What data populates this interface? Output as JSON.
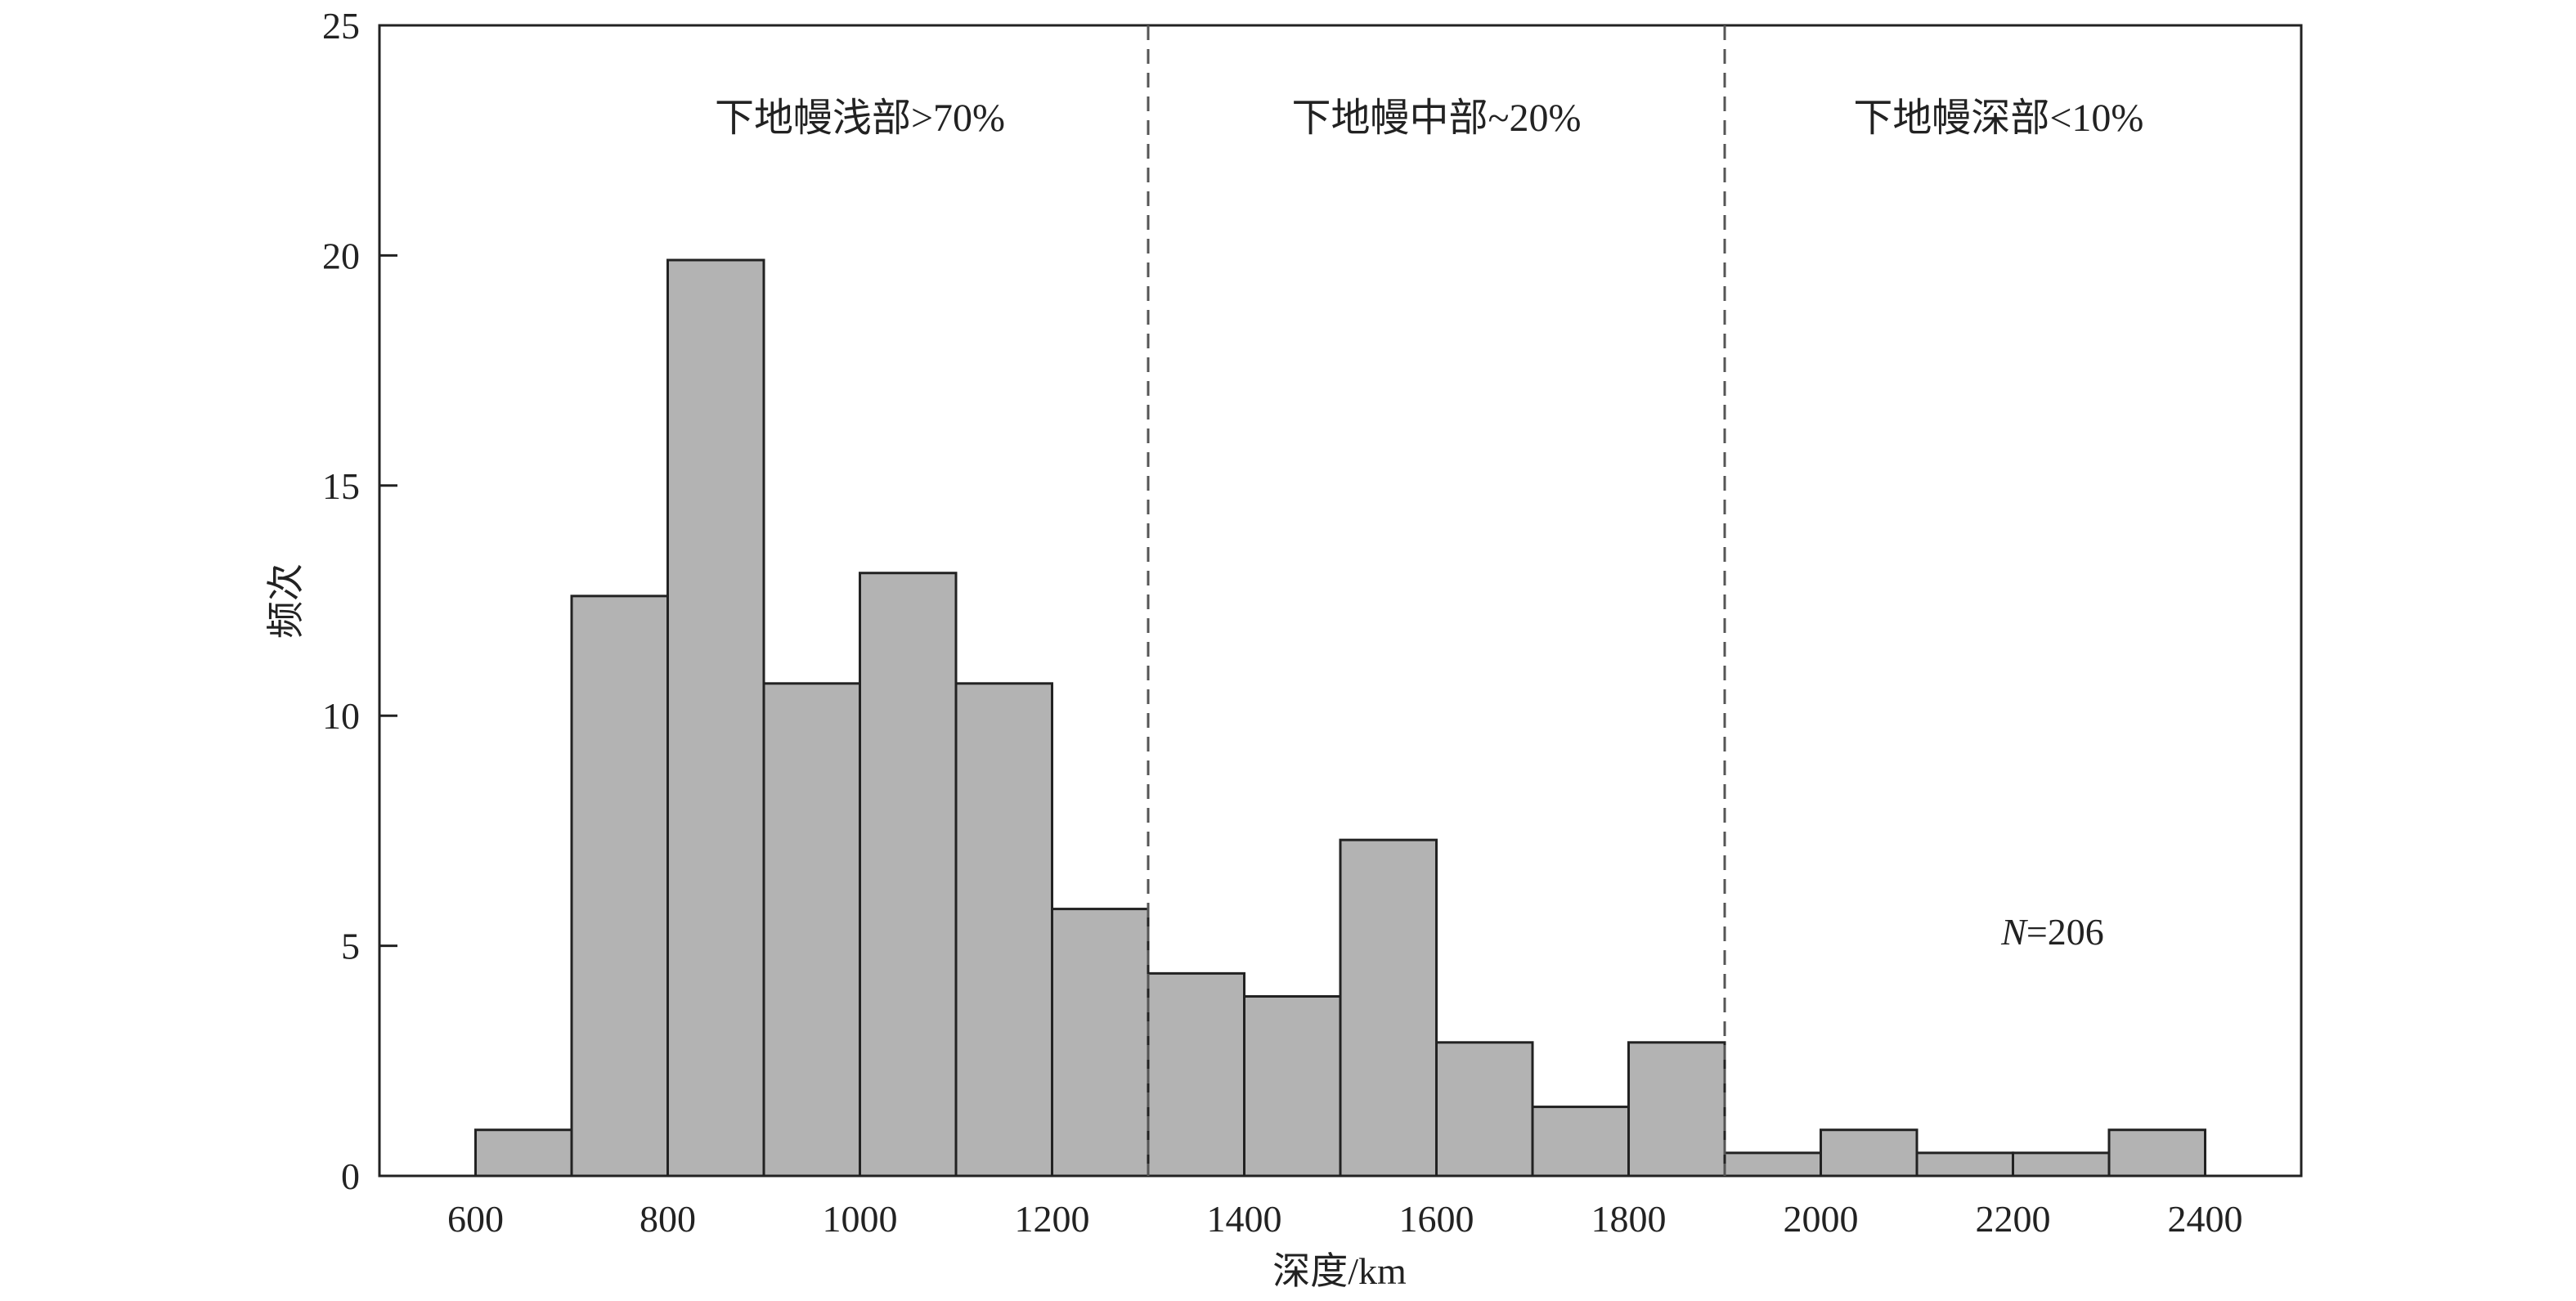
{
  "chart_data": {
    "type": "bar",
    "xlabel": "深度/km",
    "ylabel": "频次",
    "xlim": [
      500,
      2500
    ],
    "ylim": [
      0,
      25
    ],
    "x_ticks": [
      600,
      800,
      1000,
      1200,
      1400,
      1600,
      1800,
      2000,
      2200,
      2400
    ],
    "y_ticks": [
      0,
      5,
      10,
      15,
      20,
      25
    ],
    "bin_width": 100,
    "bins": [
      {
        "start": 600,
        "end": 700,
        "value": 1.0
      },
      {
        "start": 700,
        "end": 800,
        "value": 12.6
      },
      {
        "start": 800,
        "end": 900,
        "value": 19.9
      },
      {
        "start": 900,
        "end": 1000,
        "value": 10.7
      },
      {
        "start": 1000,
        "end": 1100,
        "value": 13.1
      },
      {
        "start": 1100,
        "end": 1200,
        "value": 10.7
      },
      {
        "start": 1200,
        "end": 1300,
        "value": 5.8
      },
      {
        "start": 1300,
        "end": 1400,
        "value": 4.4
      },
      {
        "start": 1400,
        "end": 1500,
        "value": 3.9
      },
      {
        "start": 1500,
        "end": 1600,
        "value": 7.3
      },
      {
        "start": 1600,
        "end": 1700,
        "value": 2.9
      },
      {
        "start": 1700,
        "end": 1800,
        "value": 1.5
      },
      {
        "start": 1800,
        "end": 1900,
        "value": 2.9
      },
      {
        "start": 1900,
        "end": 2000,
        "value": 0.5
      },
      {
        "start": 2000,
        "end": 2100,
        "value": 1.0
      },
      {
        "start": 2100,
        "end": 2200,
        "value": 0.5
      },
      {
        "start": 2200,
        "end": 2300,
        "value": 0.5
      },
      {
        "start": 2300,
        "end": 2400,
        "value": 1.0
      }
    ],
    "reference_lines": [
      1300,
      1900
    ],
    "regions": [
      {
        "label": "下地幔浅部>70%",
        "center": 1000
      },
      {
        "label": "下地幔中部~20%",
        "center": 1600
      },
      {
        "label": "下地幔深部<10%",
        "center": 2185
      }
    ],
    "sample_label": {
      "italic": "N",
      "text": "=206"
    },
    "grid": false,
    "bar_color": "#b3b3b3"
  }
}
